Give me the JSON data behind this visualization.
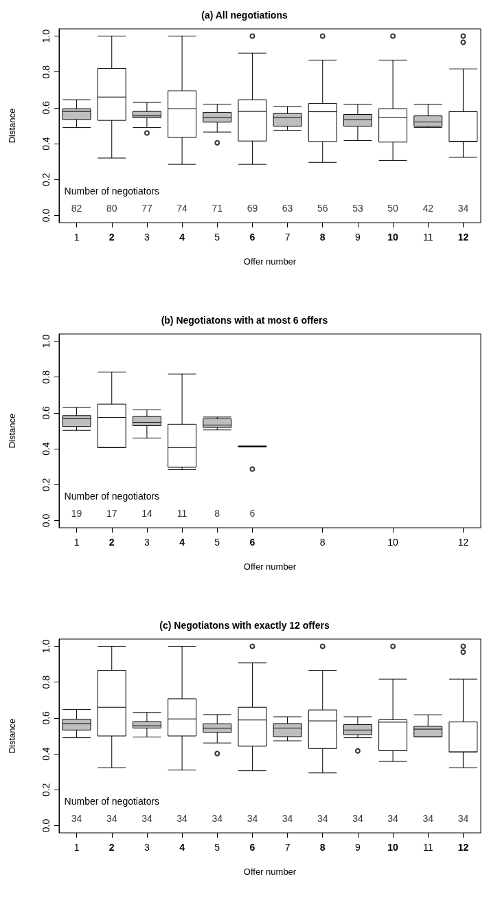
{
  "chart_data": [
    {
      "type": "box",
      "title": "(a) All negotiations",
      "xlabel": "Offer number",
      "ylabel": "Distance",
      "categories": [
        "1",
        "2",
        "3",
        "4",
        "5",
        "6",
        "7",
        "8",
        "9",
        "10",
        "11",
        "12"
      ],
      "colors": [
        "#bebebe",
        "#ffffff",
        "#bebebe",
        "#ffffff",
        "#bebebe",
        "#ffffff",
        "#bebebe",
        "#ffffff",
        "#bebebe",
        "#ffffff",
        "#bebebe",
        "#ffffff"
      ],
      "boxes": [
        {
          "low": 0.49,
          "q1": 0.535,
          "median": 0.58,
          "q3": 0.595,
          "high": 0.645
        },
        {
          "low": 0.32,
          "q1": 0.53,
          "median": 0.66,
          "q3": 0.82,
          "high": 1.0
        },
        {
          "low": 0.49,
          "q1": 0.545,
          "median": 0.555,
          "q3": 0.58,
          "high": 0.63,
          "outliers": [
            0.46
          ]
        },
        {
          "low": 0.285,
          "q1": 0.435,
          "median": 0.595,
          "q3": 0.695,
          "high": 1.0
        },
        {
          "low": 0.465,
          "q1": 0.52,
          "median": 0.545,
          "q3": 0.575,
          "high": 0.62,
          "outliers": [
            0.405
          ]
        },
        {
          "low": 0.285,
          "q1": 0.415,
          "median": 0.58,
          "q3": 0.645,
          "high": 0.905,
          "outliers": [
            1.0
          ]
        },
        {
          "low": 0.475,
          "q1": 0.497,
          "median": 0.545,
          "q3": 0.568,
          "high": 0.607
        },
        {
          "low": 0.296,
          "q1": 0.412,
          "median": 0.578,
          "q3": 0.624,
          "high": 0.866,
          "outliers": [
            1.0
          ]
        },
        {
          "low": 0.418,
          "q1": 0.497,
          "median": 0.534,
          "q3": 0.563,
          "high": 0.619
        },
        {
          "low": 0.307,
          "q1": 0.409,
          "median": 0.547,
          "q3": 0.595,
          "high": 0.866,
          "outliers": [
            1.0
          ]
        },
        {
          "low": 0.491,
          "q1": 0.497,
          "median": 0.521,
          "q3": 0.555,
          "high": 0.619
        },
        {
          "low": 0.324,
          "q1": 0.412,
          "median": 0.414,
          "q3": 0.579,
          "high": 0.817,
          "outliers": [
            1.0,
            0.965
          ]
        }
      ],
      "ylim": [
        -0.04,
        1.04
      ],
      "yticks": [
        {
          "value": 0,
          "label": "0.0"
        },
        {
          "value": 0.2,
          "label": "0.2"
        },
        {
          "value": 0.4,
          "label": "0.4"
        },
        {
          "value": 0.6,
          "label": "0.6"
        },
        {
          "value": 0.8,
          "label": "0.8"
        },
        {
          "value": 1,
          "label": "1.0"
        }
      ],
      "grid": false,
      "marker": "circle",
      "annotations": [
        "Number of negotiators",
        "82",
        "80",
        "77",
        "74",
        "71",
        "69",
        "63",
        "56",
        "53",
        "50",
        "42",
        "34"
      ]
    },
    {
      "type": "box",
      "title": "(b) Negotiatons with at most 6 offers",
      "xlabel": "Offer number",
      "ylabel": "Distance",
      "categories": [
        "1",
        "2",
        "3",
        "4",
        "5",
        "6",
        null,
        "8",
        null,
        "10",
        null,
        "12"
      ],
      "colors": [
        "#bebebe",
        "#ffffff",
        "#bebebe",
        "#ffffff",
        "#bebebe",
        "#ffffff",
        null,
        null,
        null,
        null,
        null,
        null
      ],
      "boxes": [
        {
          "low": 0.503,
          "q1": 0.524,
          "median": 0.567,
          "q3": 0.585,
          "high": 0.631
        },
        {
          "low": 0.407,
          "q1": 0.407,
          "median": 0.575,
          "q3": 0.649,
          "high": 0.828
        },
        {
          "low": 0.46,
          "q1": 0.529,
          "median": 0.548,
          "q3": 0.58,
          "high": 0.617
        },
        {
          "low": 0.284,
          "q1": 0.297,
          "median": 0.407,
          "q3": 0.537,
          "high": 0.817
        },
        {
          "low": 0.505,
          "q1": 0.519,
          "median": 0.532,
          "q3": 0.567,
          "high": 0.577
        },
        {
          "low": 0.41,
          "q1": 0.41,
          "median": 0.412,
          "q3": 0.415,
          "high": 0.415,
          "outliers": [
            0.287
          ]
        },
        null,
        null,
        null,
        null,
        null,
        null
      ],
      "ylim": [
        -0.04,
        1.04
      ],
      "yticks": [
        {
          "value": 0,
          "label": "0.0"
        },
        {
          "value": 0.2,
          "label": "0.2"
        },
        {
          "value": 0.4,
          "label": "0.4"
        },
        {
          "value": 0.6,
          "label": "0.6"
        },
        {
          "value": 0.8,
          "label": "0.8"
        },
        {
          "value": 1,
          "label": "1.0"
        }
      ],
      "grid": false,
      "marker": "circle",
      "annotations": [
        "Number of negotiators",
        "19",
        "17",
        "14",
        "11",
        "8",
        "6"
      ]
    },
    {
      "type": "box",
      "title": "(c) Negotiatons with exactly 12 offers",
      "xlabel": "Offer number",
      "ylabel": "Distance",
      "categories": [
        "1",
        "2",
        "3",
        "4",
        "5",
        "6",
        "7",
        "8",
        "9",
        "10",
        "11",
        "12"
      ],
      "colors": [
        "#bebebe",
        "#ffffff",
        "#bebebe",
        "#ffffff",
        "#bebebe",
        "#ffffff",
        "#bebebe",
        "#ffffff",
        "#bebebe",
        "#ffffff",
        "#bebebe",
        "#ffffff"
      ],
      "boxes": [
        {
          "low": 0.49,
          "q1": 0.533,
          "median": 0.569,
          "q3": 0.593,
          "high": 0.647
        },
        {
          "low": 0.323,
          "q1": 0.5,
          "median": 0.66,
          "q3": 0.866,
          "high": 1.0
        },
        {
          "low": 0.494,
          "q1": 0.544,
          "median": 0.557,
          "q3": 0.58,
          "high": 0.631
        },
        {
          "low": 0.31,
          "q1": 0.5,
          "median": 0.595,
          "q3": 0.707,
          "high": 1.0
        },
        {
          "low": 0.461,
          "q1": 0.52,
          "median": 0.543,
          "q3": 0.568,
          "high": 0.619,
          "outliers": [
            0.402
          ]
        },
        {
          "low": 0.306,
          "q1": 0.443,
          "median": 0.589,
          "q3": 0.66,
          "high": 0.907,
          "outliers": [
            1.0
          ]
        },
        {
          "low": 0.473,
          "q1": 0.496,
          "median": 0.544,
          "q3": 0.569,
          "high": 0.607
        },
        {
          "low": 0.294,
          "q1": 0.43,
          "median": 0.584,
          "q3": 0.645,
          "high": 0.866,
          "outliers": [
            1.0
          ]
        },
        {
          "low": 0.49,
          "q1": 0.507,
          "median": 0.533,
          "q3": 0.563,
          "high": 0.607,
          "outliers": [
            0.417
          ]
        },
        {
          "low": 0.358,
          "q1": 0.418,
          "median": 0.577,
          "q3": 0.59,
          "high": 0.817,
          "outliers": [
            1.0
          ]
        },
        {
          "low": 0.495,
          "q1": 0.495,
          "median": 0.538,
          "q3": 0.554,
          "high": 0.618
        },
        {
          "low": 0.323,
          "q1": 0.41,
          "median": 0.412,
          "q3": 0.578,
          "high": 0.817,
          "outliers": [
            1.0,
            0.967
          ]
        }
      ],
      "ylim": [
        -0.04,
        1.04
      ],
      "yticks": [
        {
          "value": 0,
          "label": "0.0"
        },
        {
          "value": 0.2,
          "label": "0.2"
        },
        {
          "value": 0.4,
          "label": "0.4"
        },
        {
          "value": 0.6,
          "label": "0.6"
        },
        {
          "value": 0.8,
          "label": "0.8"
        },
        {
          "value": 1,
          "label": "1.0"
        }
      ],
      "grid": false,
      "marker": "circle",
      "annotations": [
        "Number of negotiators",
        "34",
        "34",
        "34",
        "34",
        "34",
        "34",
        "34",
        "34",
        "34",
        "34",
        "34",
        "34"
      ]
    }
  ]
}
